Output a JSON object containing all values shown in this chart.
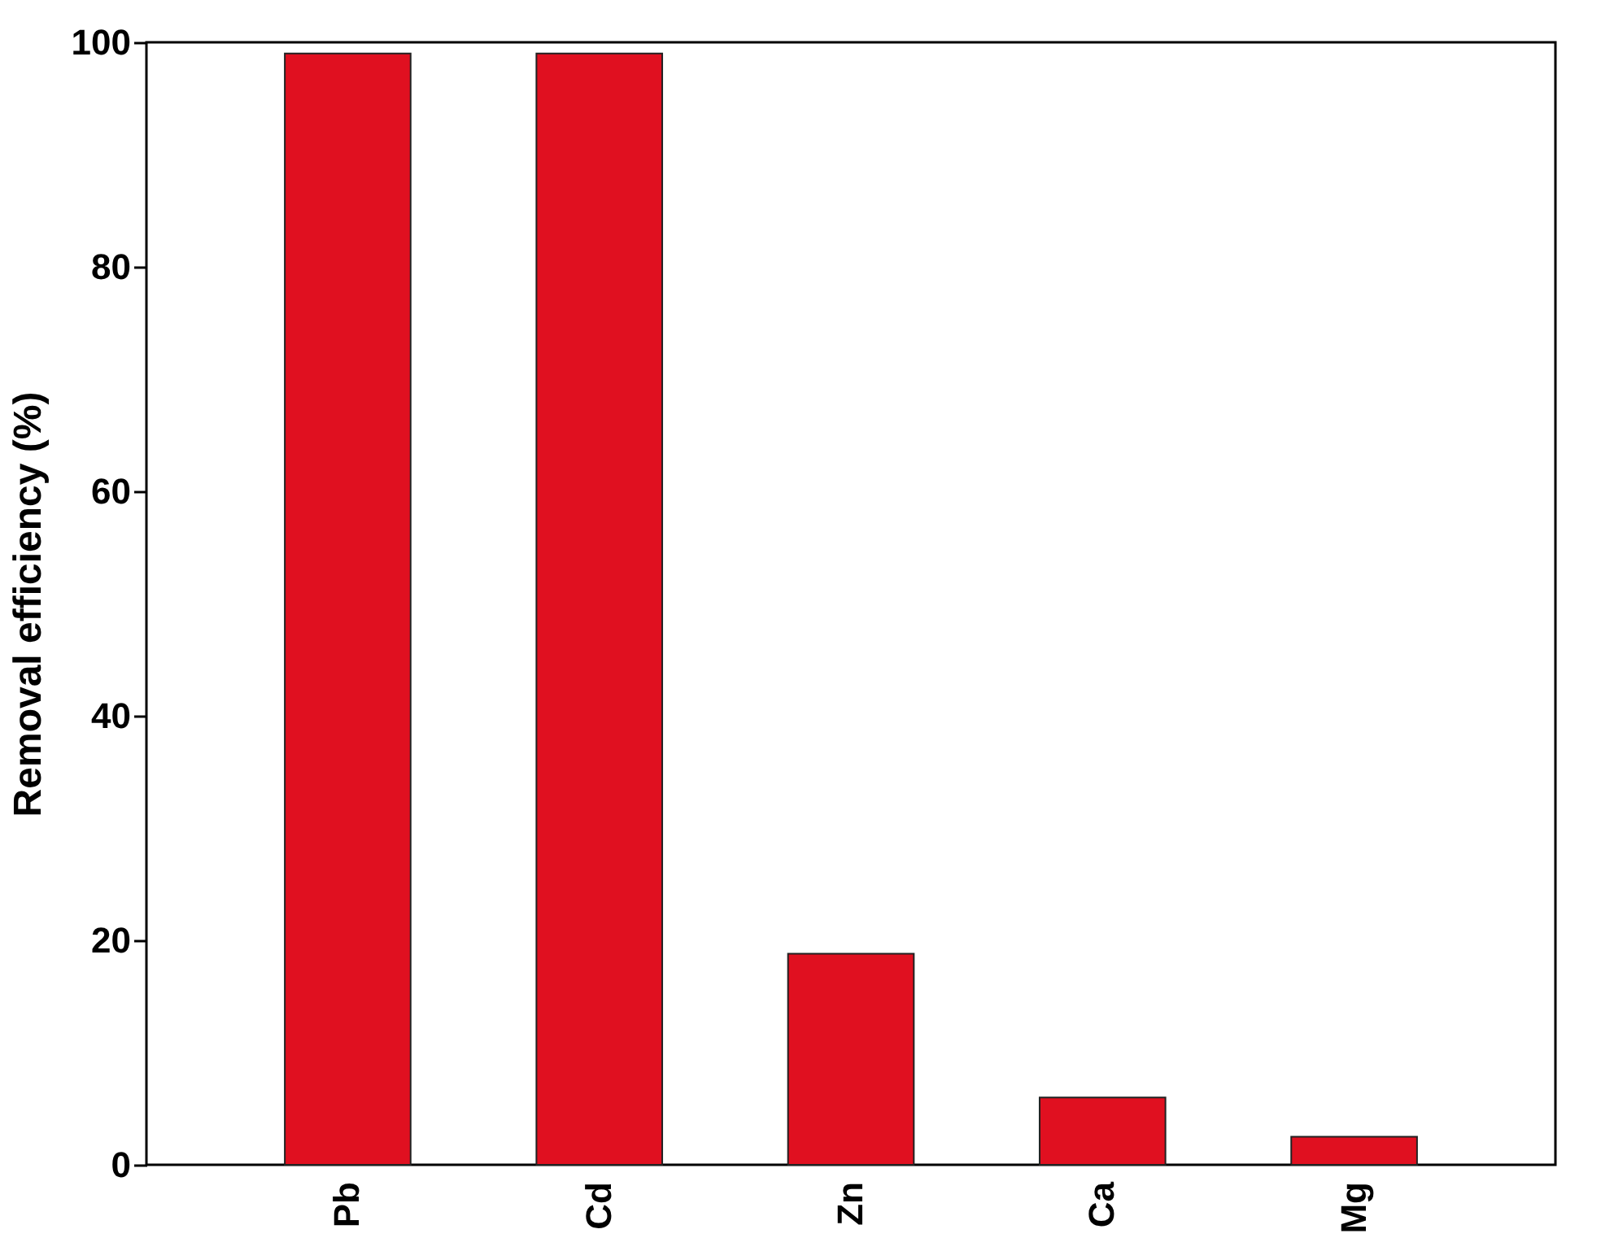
{
  "chart_data": {
    "type": "bar",
    "ylabel": "Removal efficiency (%)",
    "categories": [
      "Pb",
      "Cd",
      "Zn",
      "Ca",
      "Mg"
    ],
    "values": [
      99,
      99,
      18.8,
      6,
      2.5
    ],
    "color": "#e01020",
    "ylim": [
      0,
      100
    ],
    "yticks": [
      0,
      20,
      40,
      60,
      80,
      100
    ]
  }
}
